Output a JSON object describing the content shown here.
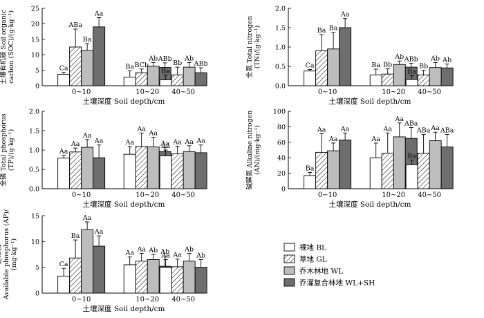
{
  "legend": [
    {
      "name": "裸地 BL",
      "fill": "#ffffff",
      "pattern": false
    },
    {
      "name": "草地 GL",
      "fill": "#ffffff",
      "pattern": true
    },
    {
      "name": "乔木林地 WL",
      "fill": "#bdbdbd",
      "pattern": false
    },
    {
      "name": "乔灌复合林地 WL+SH",
      "fill": "#6e6e6e",
      "pattern": false
    }
  ],
  "chart_data": [
    {
      "type": "bar",
      "ylabel_lines": [
        "土壤有机碳 Soil organic",
        "carbon (SOC)/(g·kg⁻¹)"
      ],
      "xlabel": "土壤深度 Soil depth/cm",
      "categories": [
        "0~10",
        "10~20",
        "40~50"
      ],
      "ylim": [
        0,
        25
      ],
      "yticks": [
        0,
        5,
        10,
        15,
        20,
        25
      ],
      "series": [
        {
          "name": "裸地 BL",
          "values": [
            3.7,
            2.8,
            1.9
          ],
          "errors": [
            0.6,
            2.0,
            1.5
          ],
          "labels": [
            "Ca",
            "Ba",
            "Ba"
          ]
        },
        {
          "name": "草地 GL",
          "values": [
            12.5,
            4.2,
            3.5
          ],
          "errors": [
            5.8,
            1.2,
            2.5
          ],
          "labels": [
            "ABa",
            "BCb",
            "Bb"
          ]
        },
        {
          "name": "乔木林地 WL",
          "values": [
            11.4,
            6.3,
            6.0
          ],
          "errors": [
            2.2,
            1.2,
            1.5
          ],
          "labels": [
            "Ba",
            "Ab",
            "Ab"
          ]
        },
        {
          "name": "乔灌复合林地 WL+SH",
          "values": [
            19.0,
            5.9,
            4.2
          ],
          "errors": [
            3.0,
            1.5,
            1.6
          ],
          "labels": [
            "Aa",
            "ABb",
            "ABb"
          ]
        }
      ]
    },
    {
      "type": "bar",
      "ylabel_lines": [
        "全氮 Total nitrogen",
        "(TN)/(g·kg⁻¹)"
      ],
      "xlabel": "土壤深度 Soil depth/cm",
      "categories": [
        "0~10",
        "10~20",
        "40~50"
      ],
      "ylim": [
        0,
        2.0
      ],
      "yticks": [
        0,
        0.5,
        1.0,
        1.5,
        2.0
      ],
      "series": [
        {
          "name": "裸地 BL",
          "values": [
            0.38,
            0.28,
            0.16
          ],
          "errors": [
            0.04,
            0.15,
            0.1
          ],
          "labels": [
            "Ca",
            "Ba",
            "Ba"
          ]
        },
        {
          "name": "草地 GL",
          "values": [
            0.9,
            0.3,
            0.28
          ],
          "errors": [
            0.42,
            0.14,
            0.12
          ],
          "labels": [
            "Ba",
            "Bb",
            "Bb"
          ]
        },
        {
          "name": "乔木林地 WL",
          "values": [
            0.95,
            0.55,
            0.47
          ],
          "errors": [
            0.43,
            0.09,
            0.13
          ],
          "labels": [
            "Ba",
            "Ab",
            "Ab"
          ]
        },
        {
          "name": "乔灌复合林地 WL+SH",
          "values": [
            1.5,
            0.48,
            0.46
          ],
          "errors": [
            0.24,
            0.1,
            0.1
          ],
          "labels": [
            "Aa",
            "ABb",
            "Ab"
          ]
        }
      ]
    },
    {
      "type": "bar",
      "ylabel_lines": [
        "全磷 Total phosphorus",
        "(TP)/(g·kg⁻¹)"
      ],
      "xlabel": "土壤深度  Soil depth/cm",
      "categories": [
        "0~10",
        "10~20",
        "40~50"
      ],
      "ylim": [
        0,
        2.0
      ],
      "yticks": [
        0,
        0.5,
        1.0,
        1.5,
        2.0
      ],
      "series": [
        {
          "name": "裸地 BL",
          "values": [
            0.79,
            0.89,
            0.85
          ],
          "errors": [
            0.07,
            0.2,
            0.15
          ],
          "labels": [
            "Aa",
            "Aa",
            "Aa"
          ]
        },
        {
          "name": "草地 GL",
          "values": [
            0.95,
            1.09,
            0.9
          ],
          "errors": [
            0.1,
            0.35,
            0.2
          ],
          "labels": [
            "Aa",
            "Aa",
            "Aa"
          ]
        },
        {
          "name": "乔木林地 WL",
          "values": [
            1.07,
            1.08,
            0.96
          ],
          "errors": [
            0.2,
            0.25,
            0.15
          ],
          "labels": [
            "Aa",
            "Aa",
            "Aa"
          ]
        },
        {
          "name": "乔灌复合林地 WL+SH",
          "values": [
            0.8,
            0.96,
            0.93
          ],
          "errors": [
            0.33,
            0.1,
            0.2
          ],
          "labels": [
            "Aa",
            "Aa",
            "Aa"
          ]
        }
      ]
    },
    {
      "type": "bar",
      "ylabel_lines": [
        "碱解氮 Alkaline nitrogen",
        "(AN)/(mg·kg⁻¹)"
      ],
      "xlabel": "土壤深度  Soil depth/cm",
      "categories": [
        "0~10",
        "10~20",
        "40~50"
      ],
      "ylim": [
        0,
        100
      ],
      "yticks": [
        0,
        20,
        40,
        60,
        80,
        100
      ],
      "series": [
        {
          "name": "裸地 BL",
          "values": [
            17,
            40,
            31
          ],
          "errors": [
            4,
            19,
            6
          ],
          "labels": [
            "Ba",
            "Aa",
            "Ba"
          ]
        },
        {
          "name": "草地 GL",
          "values": [
            47,
            46,
            46
          ],
          "errors": [
            24,
            26,
            24
          ],
          "labels": [
            "Aa",
            "Aa",
            "ABa"
          ]
        },
        {
          "name": "乔木林地 WL",
          "values": [
            49,
            67,
            62
          ],
          "errors": [
            10,
            18,
            11
          ],
          "labels": [
            "Aa",
            "Aa",
            "Aa"
          ]
        },
        {
          "name": "乔灌复合林地 WL+SH",
          "values": [
            63,
            65,
            54
          ],
          "errors": [
            9,
            14,
            16
          ],
          "labels": [
            "Aa",
            "ABa",
            "ABa"
          ]
        }
      ]
    },
    {
      "type": "bar",
      "ylabel_lines": [
        "速效磷",
        "Available phosphorus (AP)/",
        "(mg·kg⁻¹)"
      ],
      "xlabel": "土壤深度 Soil depth/cm",
      "categories": [
        "0~10",
        "10~20",
        "40~50"
      ],
      "ylim": [
        0,
        15
      ],
      "yticks": [
        0,
        5,
        10,
        15
      ],
      "series": [
        {
          "name": "裸地 BL",
          "values": [
            3.3,
            5.5,
            5.0
          ],
          "errors": [
            1.5,
            1.5,
            1.5
          ],
          "labels": [
            "Ca",
            "Aa",
            "Aa"
          ]
        },
        {
          "name": "草地 GL",
          "values": [
            6.8,
            6.2,
            5.1
          ],
          "errors": [
            3.5,
            1.5,
            1.5
          ],
          "labels": [
            "Ba",
            "Aa",
            "Aa"
          ]
        },
        {
          "name": "乔木林地 WL",
          "values": [
            12.3,
            6.5,
            6.2
          ],
          "errors": [
            1.5,
            1.0,
            1.5
          ],
          "labels": [
            "Aa",
            "Ab",
            "Ab"
          ]
        },
        {
          "name": "乔灌复合林地 WL+SH",
          "values": [
            9.1,
            5.2,
            5.0
          ],
          "errors": [
            2.0,
            2.0,
            1.5
          ],
          "labels": [
            "Aa",
            "Ab",
            "Ab"
          ]
        }
      ]
    }
  ]
}
